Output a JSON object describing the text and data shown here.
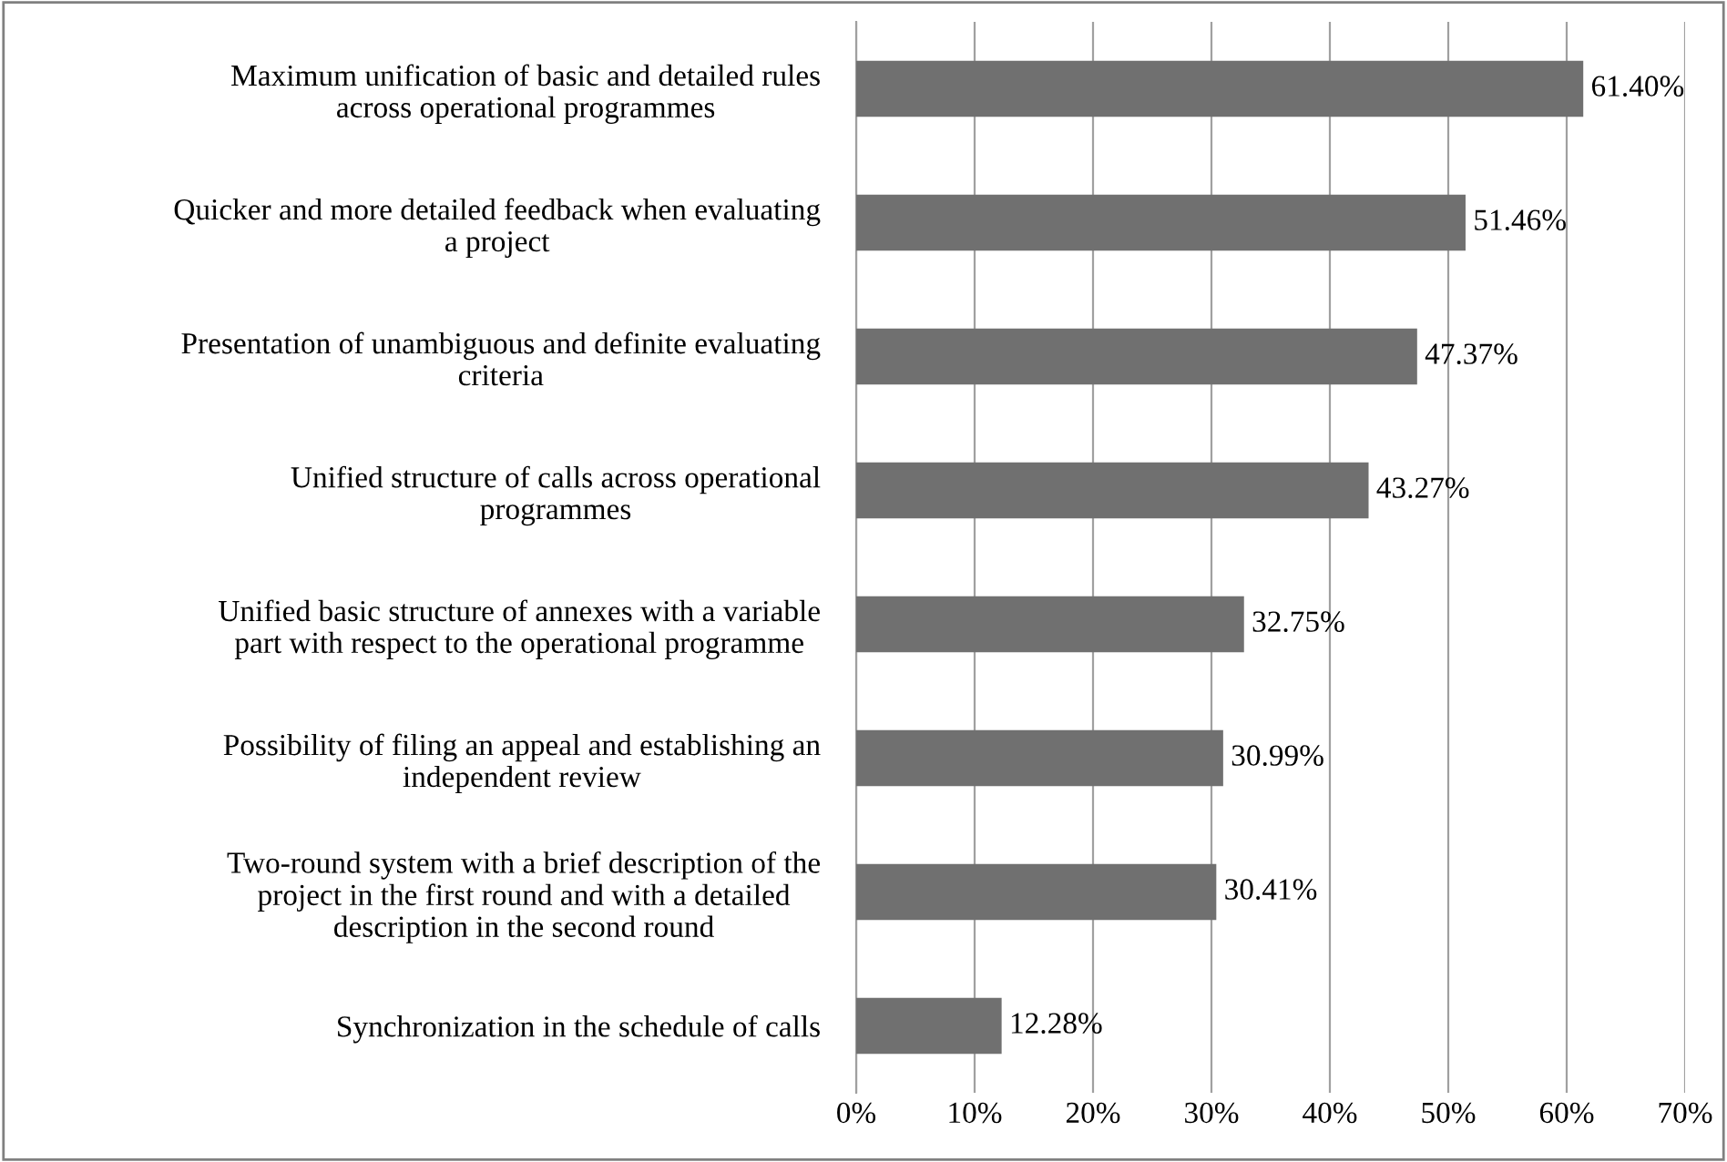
{
  "chart_data": {
    "type": "bar",
    "orientation": "horizontal",
    "categories": [
      "Maximum unification of basic and detailed rules\nacross operational programmes",
      "Quicker and more detailed feedback when evaluating\na project",
      "Presentation of unambiguous and definite evaluating\ncriteria",
      "Unified structure of calls across operational\nprogrammes",
      "Unified basic structure of annexes with a variable\npart with respect to the operational programme",
      "Possibility of filing an appeal and establishing an\nindependent review",
      "Two-round system with a brief description of the\nproject in the first round and with a detailed\ndescription in the second round",
      "Synchronization in the schedule of calls"
    ],
    "values": [
      61.4,
      51.46,
      47.37,
      43.27,
      32.75,
      30.99,
      30.41,
      12.28
    ],
    "value_labels": [
      "61.40%",
      "51.46%",
      "47.37%",
      "43.27%",
      "32.75%",
      "30.99%",
      "30.41%",
      "12.28%"
    ],
    "color": "#707070",
    "xlim": [
      0,
      70
    ],
    "xticks": [
      {
        "value": 0,
        "label": "0%"
      },
      {
        "value": 10,
        "label": "10%"
      },
      {
        "value": 20,
        "label": "20%"
      },
      {
        "value": 30,
        "label": "30%"
      },
      {
        "value": 40,
        "label": "40%"
      },
      {
        "value": 50,
        "label": "50%"
      },
      {
        "value": 60,
        "label": "60%"
      },
      {
        "value": 70,
        "label": "70%"
      }
    ],
    "grid": "x"
  }
}
